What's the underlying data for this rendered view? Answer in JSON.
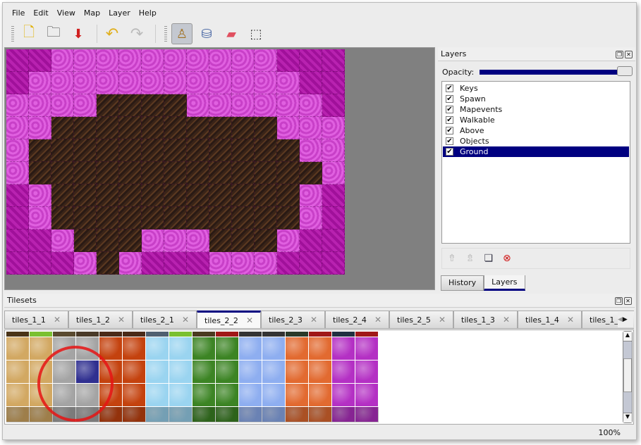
{
  "menu": [
    "File",
    "Edit",
    "View",
    "Map",
    "Layer",
    "Help"
  ],
  "toolbar": {
    "tools": [
      {
        "name": "new-icon",
        "glyph": "🗋"
      },
      {
        "name": "open-icon",
        "glyph": "🗀"
      },
      {
        "name": "save-icon",
        "glyph": "⬇"
      },
      {
        "name": "undo-icon",
        "glyph": "↶"
      },
      {
        "name": "redo-icon",
        "glyph": "↷"
      },
      {
        "name": "stamp-brush-icon",
        "glyph": "♙"
      },
      {
        "name": "bucket-fill-icon",
        "glyph": "⛁"
      },
      {
        "name": "eraser-icon",
        "glyph": "▰"
      },
      {
        "name": "rect-select-icon",
        "glyph": "⬚"
      }
    ],
    "active_tool": "stamp-brush-icon"
  },
  "map": {
    "rows": [
      "MMPPPPPPPPPPMMM",
      "MPPPPPPPPPPPPMM",
      "PPPPDDDDPPPPPPM",
      "PPDDDDDDDDDDPPP",
      "PDDDDDDDDDDDDPP",
      "PDDDDDDDDDDDDDP",
      "MPDDDDDDDDDDDPM",
      "MPDDDDDDDDDDDPM",
      "MMPDDDPPPDDDPMM",
      "MMMPDPMMMPPPMMM"
    ]
  },
  "layers_panel": {
    "title": "Layers",
    "opacity_label": "Opacity:",
    "opacity": 1.0,
    "layers": [
      {
        "name": "Keys",
        "visible": true
      },
      {
        "name": "Spawn",
        "visible": true
      },
      {
        "name": "Mapevents",
        "visible": true
      },
      {
        "name": "Walkable",
        "visible": true
      },
      {
        "name": "Above",
        "visible": true
      },
      {
        "name": "Objects",
        "visible": true
      },
      {
        "name": "Ground",
        "visible": true,
        "selected": true
      }
    ],
    "tabs": [
      "History",
      "Layers"
    ],
    "active_tab": "Layers"
  },
  "tilesets": {
    "title": "Tilesets",
    "tabs": [
      "tiles_1_1",
      "tiles_1_2",
      "tiles_2_1",
      "tiles_2_2",
      "tiles_2_3",
      "tiles_2_4",
      "tiles_2_5",
      "tiles_1_3",
      "tiles_1_4",
      "tiles_1_"
    ],
    "active_tab": "tiles_2_2",
    "colors": [
      "#d2a862",
      "#a4a4a4",
      "#c4420e",
      "#9ad4f0",
      "#3c8424",
      "#8eaef0",
      "#e26a30",
      "#b430c4"
    ],
    "selected_color": "#303090"
  },
  "status": {
    "zoom": "100%"
  }
}
